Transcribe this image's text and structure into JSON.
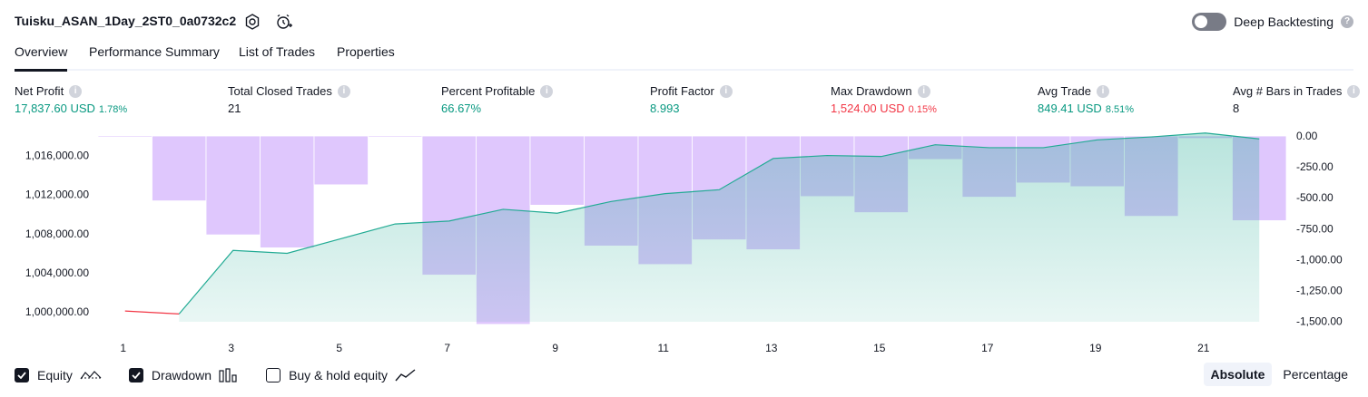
{
  "header": {
    "title": "Tuisku_ASAN_1Day_2ST0_0a0732c2",
    "deep_backtesting_label": "Deep Backtesting",
    "deep_backtesting_enabled": false
  },
  "tabs": [
    {
      "label": "Overview",
      "active": true
    },
    {
      "label": "Performance Summary",
      "active": false
    },
    {
      "label": "List of Trades",
      "active": false
    },
    {
      "label": "Properties",
      "active": false
    }
  ],
  "stats": {
    "net_profit": {
      "label": "Net Profit",
      "value": "17,837.60 USD",
      "pct": "1.78%"
    },
    "total_closed_trades": {
      "label": "Total Closed Trades",
      "value": "21"
    },
    "percent_profitable": {
      "label": "Percent Profitable",
      "value": "66.67%"
    },
    "profit_factor": {
      "label": "Profit Factor",
      "value": "8.993"
    },
    "max_drawdown": {
      "label": "Max Drawdown",
      "value": "1,524.00 USD",
      "pct": "0.15%"
    },
    "avg_trade": {
      "label": "Avg Trade",
      "value": "849.41 USD",
      "pct": "8.51%"
    },
    "avg_bars": {
      "label": "Avg # Bars in Trades",
      "value": "8"
    }
  },
  "chart_data": {
    "type": "line",
    "x": [
      1,
      2,
      3,
      4,
      5,
      6,
      7,
      8,
      9,
      10,
      11,
      12,
      13,
      14,
      15,
      16,
      17,
      18,
      19,
      20,
      21,
      22
    ],
    "x_tick_labels": [
      "1",
      "3",
      "5",
      "7",
      "9",
      "11",
      "13",
      "15",
      "17",
      "19",
      "21"
    ],
    "y_left_tick_labels": [
      "1,016,000.00",
      "1,012,000.00",
      "1,008,000.00",
      "1,004,000.00",
      "1,000,000.00"
    ],
    "y_right_tick_labels": [
      "0.00",
      "-250.00",
      "-500.00",
      "-750.00",
      "-1,000.00",
      "-1,250.00",
      "-1,500.00"
    ],
    "ylim_left": [
      999000,
      1018000
    ],
    "ylim_right": [
      -1525,
      0
    ],
    "series": [
      {
        "name": "Equity",
        "axis": "left",
        "values": [
          1000100,
          999800,
          1006300,
          1006000,
          1007500,
          1009000,
          1009300,
          1010500,
          1010100,
          1011300,
          1012100,
          1012500,
          1015700,
          1016000,
          1015900,
          1017100,
          1016800,
          1016800,
          1017600,
          1017900,
          1018300,
          1017700
        ]
      },
      {
        "name": "Drawdown",
        "axis": "right",
        "values": [
          -10,
          -525,
          -800,
          -905,
          -395,
          -10,
          -1125,
          -1524,
          -560,
          -890,
          -1040,
          -840,
          -920,
          -490,
          -620,
          -190,
          -495,
          -380,
          -410,
          -650,
          -20,
          -685
        ]
      }
    ],
    "colors": {
      "equity_line": "#22ab94",
      "equity_loss": "#f23645",
      "equity_fill": "#22ab94",
      "drawdown_fill": "#d6b7fd"
    }
  },
  "legend": {
    "equity": {
      "label": "Equity",
      "checked": true
    },
    "drawdown": {
      "label": "Drawdown",
      "checked": true
    },
    "buy_hold": {
      "label": "Buy & hold equity",
      "checked": false
    }
  },
  "modes": [
    {
      "label": "Absolute",
      "active": true
    },
    {
      "label": "Percentage",
      "active": false
    }
  ]
}
